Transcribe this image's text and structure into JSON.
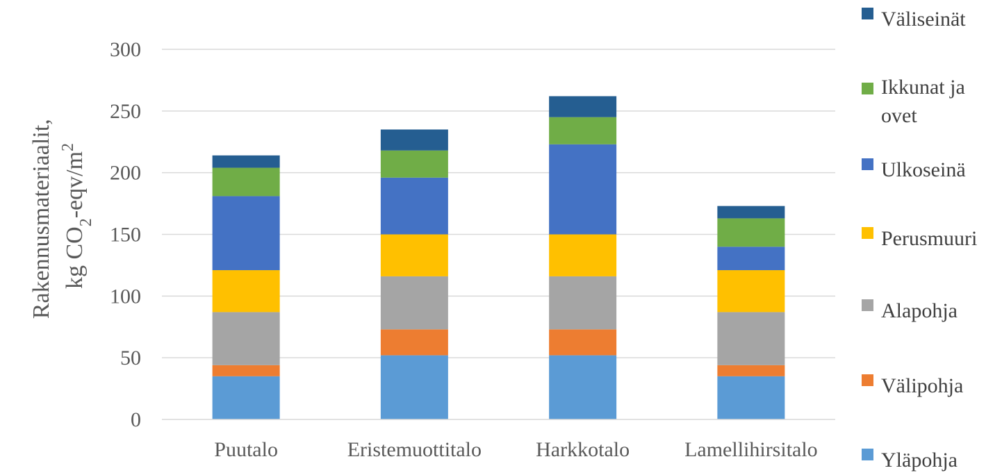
{
  "chart_data": {
    "type": "bar",
    "stacked": true,
    "categories": [
      "Puutalo",
      "Eristemuottitalo",
      "Harkkotalo",
      "Lamellihirsitalo"
    ],
    "ylabel": {
      "line1": "Rakennusmateriaalit,",
      "line2_prefix": "kg CO",
      "line2_sub": "2",
      "line2_mid": "-eqv/m",
      "line2_sup": "2"
    },
    "ylim": [
      0,
      300
    ],
    "yticks": [
      "0",
      "50",
      "100",
      "150",
      "200",
      "250",
      "300"
    ],
    "grid": true,
    "legend_position": "right",
    "series": [
      {
        "name": "Yläpohja",
        "color": "#5B9BD5",
        "values": [
          35,
          52,
          52,
          35
        ]
      },
      {
        "name": "Välipohja",
        "color": "#ED7D31",
        "values": [
          9,
          21,
          21,
          9
        ]
      },
      {
        "name": "Alapohja",
        "color": "#A5A5A5",
        "values": [
          43,
          43,
          43,
          43
        ]
      },
      {
        "name": "Perusmuuri",
        "color": "#FFC000",
        "values": [
          34,
          34,
          34,
          34
        ]
      },
      {
        "name": "Ulkoseinä",
        "color": "#4472C4",
        "values": [
          60,
          46,
          73,
          19
        ]
      },
      {
        "name": "Ikkunat ja ovet",
        "color": "#70AD47",
        "values": [
          23,
          22,
          22,
          23
        ]
      },
      {
        "name": "Väliseinät",
        "color": "#255E91",
        "values": [
          10,
          17,
          17,
          10
        ]
      }
    ]
  }
}
